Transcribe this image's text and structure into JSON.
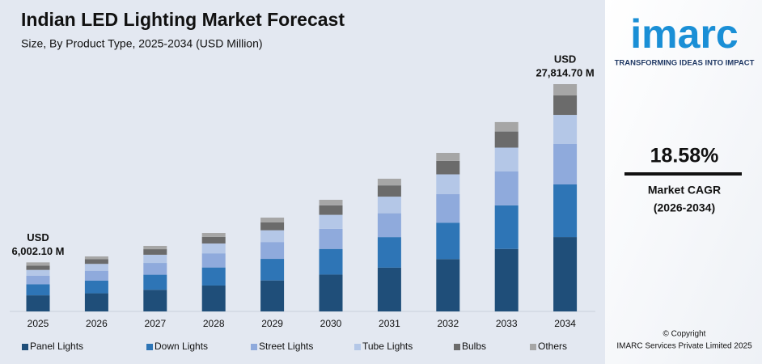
{
  "chart_data": {
    "type": "stacked_bar",
    "title": "Indian LED Lighting Market Forecast",
    "subtitle": "Size, By Product Type, 2025-2034 (USD Million)",
    "categories": [
      "2025",
      "2026",
      "2027",
      "2028",
      "2029",
      "2030",
      "2031",
      "2032",
      "2033",
      "2034"
    ],
    "series": [
      {
        "name": "Panel Lights",
        "color": "#1f4e79",
        "values": [
          1970,
          2220,
          2650,
          3170,
          3790,
          4510,
          5360,
          6400,
          7650,
          9100
        ]
      },
      {
        "name": "Down Lights",
        "color": "#2e75b6",
        "values": [
          1350,
          1550,
          1845,
          2210,
          2640,
          3140,
          3735,
          4460,
          5330,
          6440
        ]
      },
      {
        "name": "Street Lights",
        "color": "#8faadc",
        "values": [
          1035,
          1210,
          1440,
          1730,
          2065,
          2460,
          2920,
          3490,
          4170,
          4950
        ]
      },
      {
        "name": "Tube Lights",
        "color": "#b4c7e7",
        "values": [
          725,
          840,
          1000,
          1200,
          1435,
          1710,
          2030,
          2425,
          2895,
          3560
        ]
      },
      {
        "name": "Bulbs",
        "color": "#6b6b6b",
        "values": [
          515,
          570,
          680,
          815,
          975,
          1160,
          1380,
          1650,
          1970,
          2380
        ]
      },
      {
        "name": "Others",
        "color": "#a6a6a6",
        "values": [
          407,
          340,
          405,
          475,
          575,
          680,
          815,
          975,
          1155,
          1385
        ]
      }
    ],
    "annotations": [
      [
        "USD",
        "6,002.10 M"
      ],
      [
        "USD",
        "27,814.70 M"
      ]
    ]
  },
  "sidebar": {
    "logo": "imarc",
    "tagline": "TRANSFORMING IDEAS INTO IMPACT",
    "cagr": "18.58%",
    "cagr_label": [
      "Market CAGR",
      "(2026-2034)"
    ],
    "copyright": [
      "© Copyright",
      "IMARC Services Private Limited 2025"
    ]
  }
}
